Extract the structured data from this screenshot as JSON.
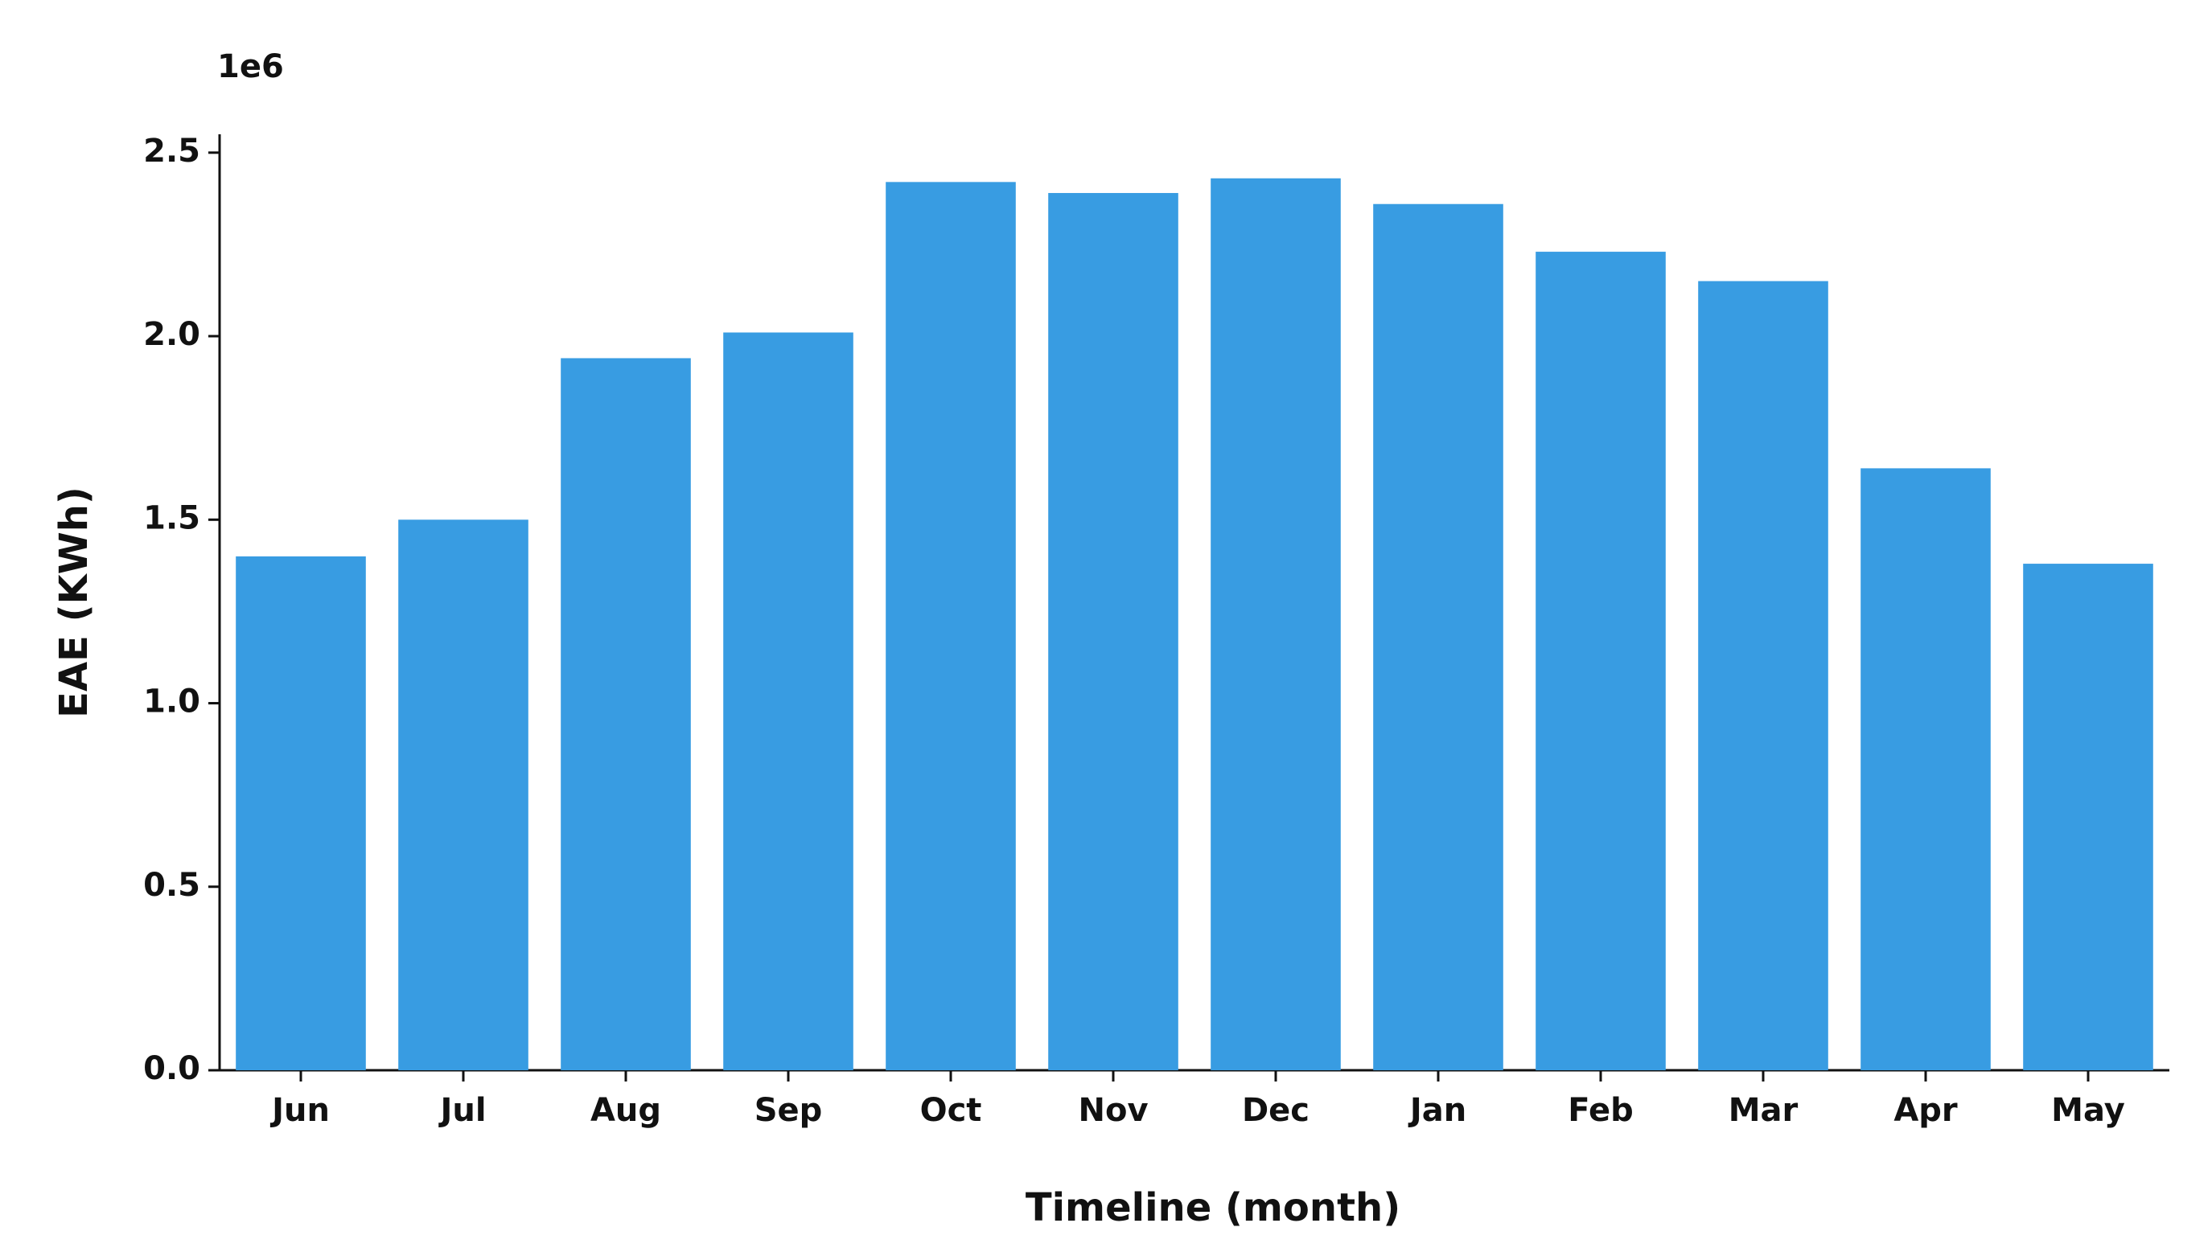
{
  "chart_data": {
    "type": "bar",
    "offset_label": "1e6",
    "xlabel": "Timeline (month)",
    "ylabel": "EAE (KWh)",
    "categories": [
      "Jun",
      "Jul",
      "Aug",
      "Sep",
      "Oct",
      "Nov",
      "Dec",
      "Jan",
      "Feb",
      "Mar",
      "Apr",
      "May"
    ],
    "values": [
      1.4,
      1.5,
      1.94,
      2.01,
      2.42,
      2.39,
      2.43,
      2.36,
      2.23,
      2.15,
      1.64,
      1.38
    ],
    "color": "#389ce2",
    "ylim": [
      0,
      2.55
    ],
    "yticks": [
      {
        "value": 0,
        "label": "0.0"
      },
      0.5,
      {
        "value": 1,
        "label": "1.0"
      },
      1.5,
      {
        "value": 2,
        "label": "2.0"
      },
      2.5
    ],
    "grid": false
  }
}
